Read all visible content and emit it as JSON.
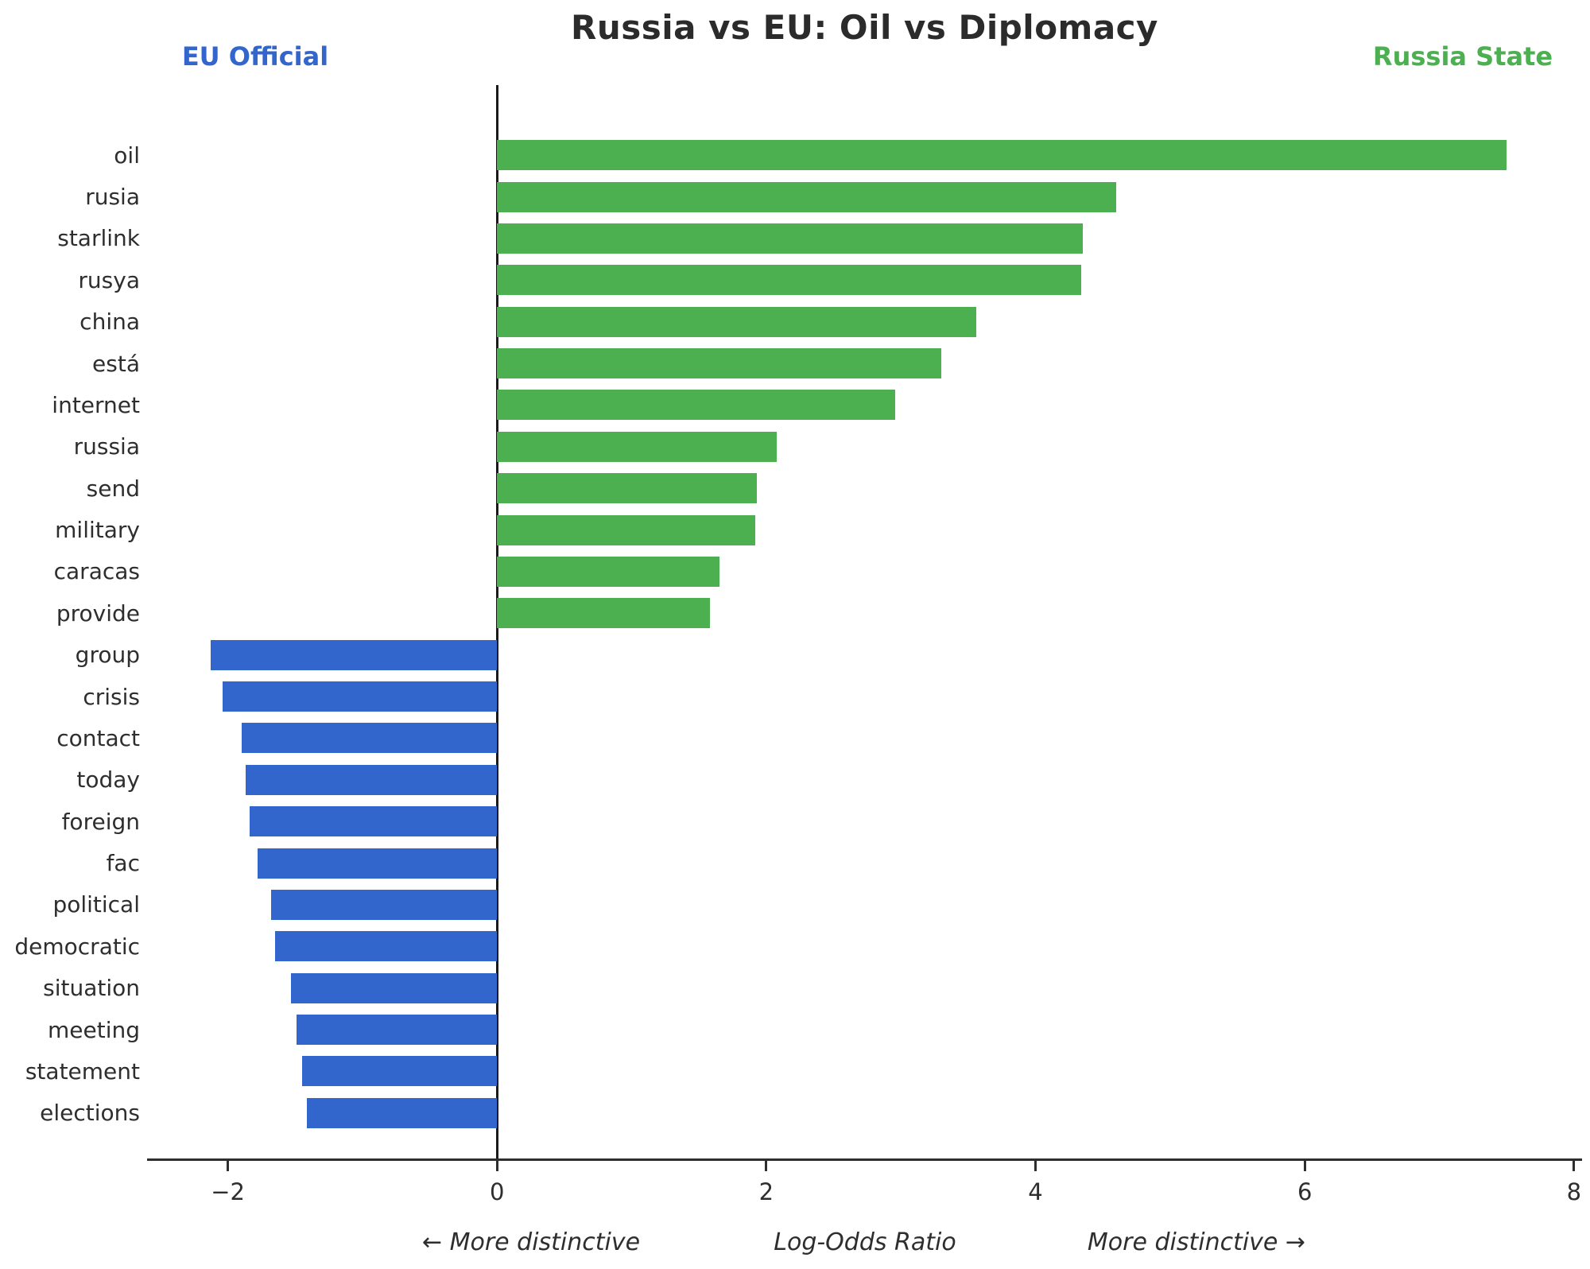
{
  "title": "Russia vs EU: Oil vs Diplomacy",
  "legend": {
    "left": {
      "label": "EU Official",
      "color": "#3366cc"
    },
    "right": {
      "label": "Russia State",
      "color": "#4caf50"
    }
  },
  "footer": {
    "left": "← More distinctive",
    "center": "Log-Odds Ratio",
    "right": "More distinctive →"
  },
  "chart_data": {
    "type": "bar",
    "orientation": "horizontal",
    "title": "Russia vs EU: Oil vs Diplomacy",
    "xlabel": "Log-Odds Ratio",
    "xlim": [
      -2.6,
      8.06
    ],
    "grid": false,
    "xticks": [
      {
        "value": -2,
        "label": "−2"
      },
      {
        "value": 0,
        "label": "0"
      },
      {
        "value": 2,
        "label": "2"
      },
      {
        "value": 4,
        "label": "4"
      },
      {
        "value": 6,
        "label": "6"
      },
      {
        "value": 8,
        "label": "8"
      }
    ],
    "categories": [
      "oil",
      "rusia",
      "starlink",
      "rusya",
      "china",
      "está",
      "internet",
      "russia",
      "send",
      "military",
      "caracas",
      "provide",
      "group",
      "crisis",
      "contact",
      "today",
      "foreign",
      "fac",
      "political",
      "democratic",
      "situation",
      "meeting",
      "statement",
      "elections"
    ],
    "values": [
      7.5,
      4.6,
      4.35,
      4.34,
      3.56,
      3.3,
      2.96,
      2.08,
      1.93,
      1.92,
      1.65,
      1.58,
      -2.13,
      -2.04,
      -1.9,
      -1.87,
      -1.84,
      -1.78,
      -1.68,
      -1.65,
      -1.53,
      -1.49,
      -1.45,
      -1.41
    ],
    "positive_series": "Russia State",
    "negative_series": "EU Official",
    "positive_color": "#4caf50",
    "negative_color": "#3366cc"
  }
}
